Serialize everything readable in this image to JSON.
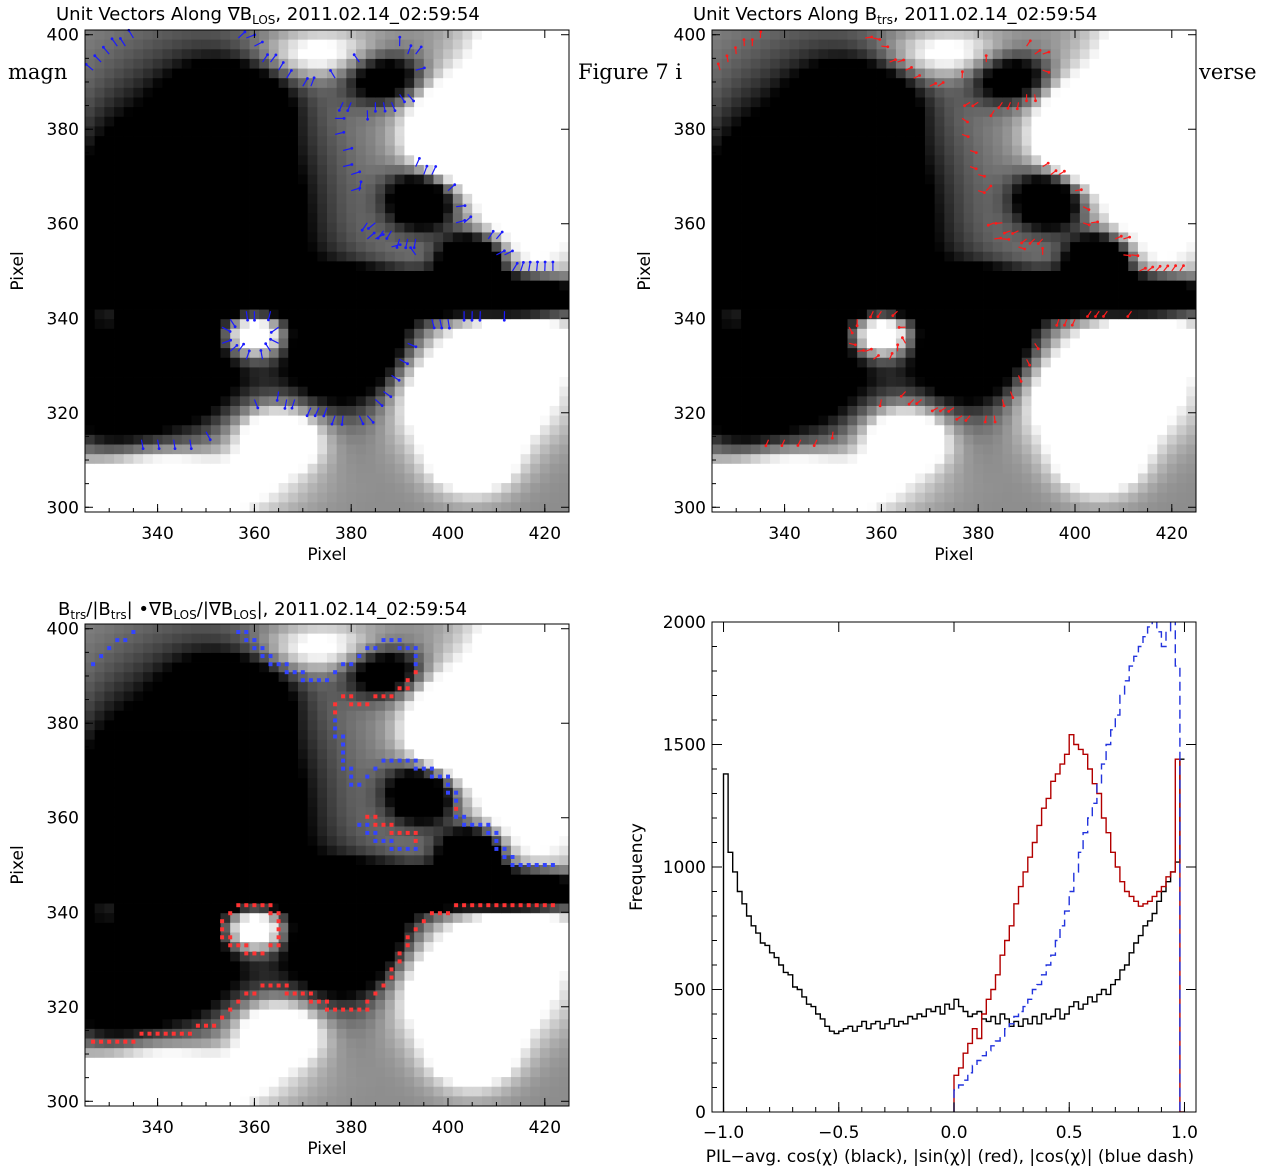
{
  "page_text": {
    "behind_left": "magn",
    "behind_mid": "Figure 7 i",
    "behind_right": "verse"
  },
  "panels": [
    {
      "id": "p1",
      "title_parts": [
        "Unit Vectors Along ",
        "∇B",
        "LOS",
        ", 2011.02.14_02:59:54"
      ],
      "xlabel": "Pixel",
      "ylabel": "Pixel",
      "xlim": [
        325,
        425
      ],
      "ylim": [
        299,
        401
      ],
      "xticks": [
        "340",
        "360",
        "380",
        "400",
        "420"
      ],
      "yticks": [
        "300",
        "320",
        "340",
        "360",
        "380",
        "400"
      ],
      "overlay": "blue-arrows",
      "overlay_color": "#1a1aff"
    },
    {
      "id": "p2",
      "title_parts": [
        "Unit Vectors Along ",
        "B",
        "trs",
        ", 2011.02.14_02:59:54"
      ],
      "xlabel": "Pixel",
      "ylabel": "Pixel",
      "xlim": [
        325,
        425
      ],
      "ylim": [
        299,
        401
      ],
      "xticks": [
        "340",
        "360",
        "380",
        "400",
        "420"
      ],
      "yticks": [
        "300",
        "320",
        "340",
        "360",
        "380",
        "400"
      ],
      "overlay": "red-arrows",
      "overlay_color": "#ff1a1a"
    },
    {
      "id": "p3",
      "title_parts": [
        "B",
        "trs",
        "/|B",
        "trs",
        "|  •∇B",
        "LOS",
        "/|∇B",
        "LOS",
        "|, 2011.02.14_02:59:54"
      ],
      "xlabel": "Pixel",
      "ylabel": "Pixel",
      "xlim": [
        325,
        425
      ],
      "ylim": [
        299,
        401
      ],
      "xticks": [
        "340",
        "360",
        "380",
        "400",
        "420"
      ],
      "yticks": [
        "300",
        "320",
        "340",
        "360",
        "380",
        "400"
      ],
      "overlay": "dots",
      "overlay_colors": [
        "#ff3333",
        "#3344ff"
      ]
    }
  ],
  "chart_data": {
    "type": "line",
    "title": "",
    "xlabel": "PIL−avg. cos(χ) (black), |sin(χ)| (red), |cos(χ)| (blue dash)",
    "ylabel": "Frequency",
    "xlim": [
      -1.05,
      1.05
    ],
    "ylim": [
      0,
      2000
    ],
    "xticks": [
      -1.0,
      -0.5,
      0.0,
      0.5,
      1.0
    ],
    "xtick_labels": [
      "−1.0",
      "−0.5",
      "0.0",
      "0.5",
      "1.0"
    ],
    "yticks": [
      0,
      500,
      1000,
      1500,
      2000
    ],
    "ytick_labels": [
      "0",
      "500",
      "1000",
      "1500",
      "2000"
    ],
    "grid": false,
    "series": [
      {
        "color": "#000000",
        "style": "solid",
        "x": [
          -1.0,
          -0.98,
          -0.96,
          -0.94,
          -0.92,
          -0.9,
          -0.88,
          -0.86,
          -0.84,
          -0.82,
          -0.8,
          -0.78,
          -0.76,
          -0.74,
          -0.72,
          -0.7,
          -0.68,
          -0.66,
          -0.64,
          -0.62,
          -0.6,
          -0.58,
          -0.56,
          -0.54,
          -0.52,
          -0.5,
          -0.48,
          -0.46,
          -0.44,
          -0.42,
          -0.4,
          -0.38,
          -0.36,
          -0.34,
          -0.32,
          -0.3,
          -0.28,
          -0.26,
          -0.24,
          -0.22,
          -0.2,
          -0.18,
          -0.16,
          -0.14,
          -0.12,
          -0.1,
          -0.08,
          -0.06,
          -0.04,
          -0.02,
          0.0,
          0.02,
          0.04,
          0.06,
          0.08,
          0.1,
          0.12,
          0.14,
          0.16,
          0.18,
          0.2,
          0.22,
          0.24,
          0.26,
          0.28,
          0.3,
          0.32,
          0.34,
          0.36,
          0.38,
          0.4,
          0.42,
          0.44,
          0.46,
          0.48,
          0.5,
          0.52,
          0.54,
          0.56,
          0.58,
          0.6,
          0.62,
          0.64,
          0.66,
          0.68,
          0.7,
          0.72,
          0.74,
          0.76,
          0.78,
          0.8,
          0.82,
          0.84,
          0.86,
          0.88,
          0.9,
          0.92,
          0.94,
          0.96,
          0.98
        ],
        "y": [
          1380,
          1060,
          980,
          900,
          850,
          800,
          760,
          730,
          690,
          680,
          650,
          630,
          600,
          570,
          560,
          510,
          500,
          470,
          440,
          430,
          400,
          380,
          350,
          330,
          320,
          330,
          340,
          350,
          330,
          350,
          370,
          340,
          360,
          370,
          340,
          360,
          380,
          350,
          370,
          360,
          390,
          380,
          400,
          390,
          420,
          410,
          430,
          400,
          440,
          420,
          460,
          430,
          410,
          390,
          400,
          410,
          380,
          370,
          390,
          360,
          400,
          380,
          350,
          370,
          350,
          380,
          360,
          390,
          360,
          400,
          380,
          390,
          420,
          380,
          400,
          430,
          450,
          420,
          440,
          470,
          450,
          480,
          500,
          480,
          520,
          540,
          580,
          600,
          650,
          690,
          720,
          760,
          780,
          810,
          860,
          900,
          940,
          980,
          1020,
          1440
        ]
      },
      {
        "color": "#b30000",
        "style": "solid",
        "x": [
          0.0,
          0.02,
          0.04,
          0.06,
          0.08,
          0.1,
          0.12,
          0.14,
          0.16,
          0.18,
          0.2,
          0.22,
          0.24,
          0.26,
          0.28,
          0.3,
          0.32,
          0.34,
          0.36,
          0.38,
          0.4,
          0.42,
          0.44,
          0.46,
          0.48,
          0.5,
          0.52,
          0.54,
          0.56,
          0.58,
          0.6,
          0.62,
          0.64,
          0.66,
          0.68,
          0.7,
          0.72,
          0.74,
          0.76,
          0.78,
          0.8,
          0.82,
          0.84,
          0.86,
          0.88,
          0.9,
          0.92,
          0.94,
          0.96,
          0.98
        ],
        "y": [
          150,
          180,
          240,
          280,
          340,
          300,
          400,
          460,
          500,
          560,
          640,
          700,
          760,
          850,
          920,
          980,
          1040,
          1100,
          1170,
          1240,
          1280,
          1350,
          1380,
          1420,
          1460,
          1540,
          1500,
          1480,
          1460,
          1400,
          1340,
          1300,
          1200,
          1140,
          1060,
          1000,
          940,
          900,
          880,
          860,
          840,
          850,
          860,
          880,
          900,
          920,
          960,
          980,
          1440,
          0
        ]
      },
      {
        "color": "#2233dd",
        "style": "dashed",
        "x": [
          0.0,
          0.02,
          0.04,
          0.06,
          0.08,
          0.1,
          0.12,
          0.14,
          0.16,
          0.18,
          0.2,
          0.22,
          0.24,
          0.26,
          0.28,
          0.3,
          0.32,
          0.34,
          0.36,
          0.38,
          0.4,
          0.42,
          0.44,
          0.46,
          0.48,
          0.5,
          0.52,
          0.54,
          0.56,
          0.58,
          0.6,
          0.62,
          0.64,
          0.66,
          0.68,
          0.7,
          0.72,
          0.74,
          0.76,
          0.78,
          0.8,
          0.82,
          0.84,
          0.86,
          0.88,
          0.9,
          0.92,
          0.94,
          0.96,
          0.98
        ],
        "y": [
          90,
          110,
          130,
          160,
          190,
          210,
          230,
          250,
          270,
          290,
          310,
          340,
          360,
          390,
          410,
          430,
          460,
          500,
          520,
          560,
          600,
          640,
          700,
          760,
          820,
          900,
          980,
          1060,
          1140,
          1200,
          1260,
          1340,
          1420,
          1500,
          1560,
          1620,
          1700,
          1760,
          1820,
          1860,
          1900,
          1940,
          1980,
          2020,
          1960,
          1900,
          1960,
          2040,
          1820,
          0
        ]
      }
    ]
  }
}
